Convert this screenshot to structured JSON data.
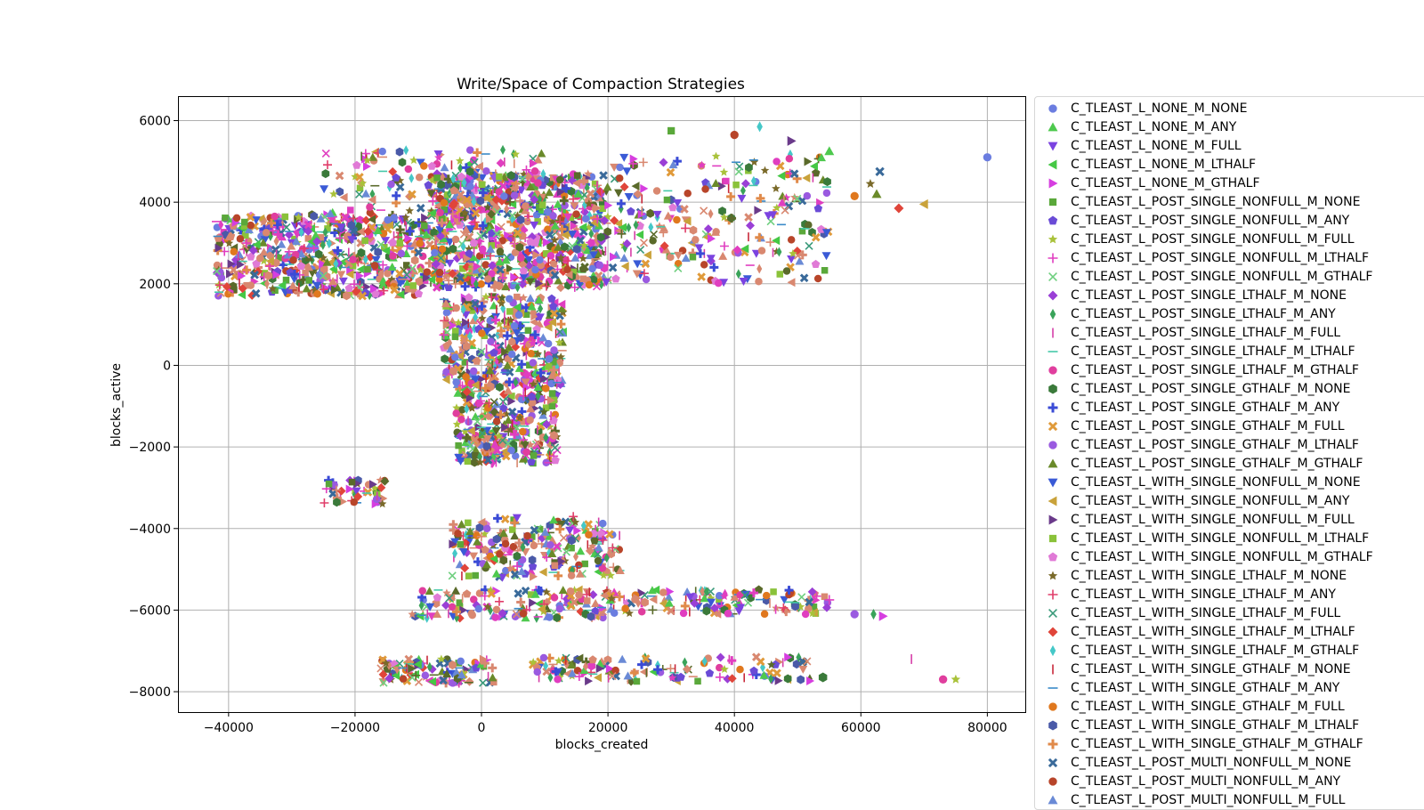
{
  "chart_data": {
    "type": "scatter",
    "title": "Write/Space of Compaction Strategies",
    "xlabel": "blocks_created",
    "ylabel": "blocks_active",
    "xlim": [
      -48000,
      86000
    ],
    "ylim": [
      -8500,
      6600
    ],
    "xticks": [
      -40000,
      -20000,
      0,
      20000,
      40000,
      60000,
      80000
    ],
    "yticks": [
      -8000,
      -6000,
      -4000,
      -2000,
      0,
      2000,
      4000,
      6000
    ],
    "xtick_labels": [
      "−40000",
      "−20000",
      "0",
      "20000",
      "40000",
      "60000",
      "80000"
    ],
    "ytick_labels": [
      "−8000",
      "−6000",
      "−4000",
      "−2000",
      "0",
      "2000",
      "4000",
      "6000"
    ],
    "grid": true,
    "legend_position": "outside-right",
    "series": [
      {
        "name": "C_TLEAST_L_NONE_M_NONE",
        "marker": "circle",
        "color": "#6b7de0"
      },
      {
        "name": "C_TLEAST_L_NONE_M_ANY",
        "marker": "triangle-up",
        "color": "#4ec94e"
      },
      {
        "name": "C_TLEAST_L_NONE_M_FULL",
        "marker": "triangle-down",
        "color": "#7b43e0"
      },
      {
        "name": "C_TLEAST_L_NONE_M_LTHALF",
        "marker": "triangle-left",
        "color": "#45c845"
      },
      {
        "name": "C_TLEAST_L_NONE_M_GTHALF",
        "marker": "triangle-right",
        "color": "#d63ee0"
      },
      {
        "name": "C_TLEAST_L_POST_SINGLE_NONFULL_M_NONE",
        "marker": "square",
        "color": "#5aa83a"
      },
      {
        "name": "C_TLEAST_L_POST_SINGLE_NONFULL_M_ANY",
        "marker": "pentagon",
        "color": "#6a4bd6"
      },
      {
        "name": "C_TLEAST_L_POST_SINGLE_NONFULL_M_FULL",
        "marker": "star",
        "color": "#a9c23a"
      },
      {
        "name": "C_TLEAST_L_POST_SINGLE_NONFULL_M_LTHALF",
        "marker": "plus",
        "color": "#e03ec0"
      },
      {
        "name": "C_TLEAST_L_POST_SINGLE_NONFULL_M_GTHALF",
        "marker": "x",
        "color": "#6fcf7f"
      },
      {
        "name": "C_TLEAST_L_POST_SINGLE_LTHALF_M_NONE",
        "marker": "diamond",
        "color": "#9a3fd6"
      },
      {
        "name": "C_TLEAST_L_POST_SINGLE_LTHALF_M_ANY",
        "marker": "thin-diamond",
        "color": "#3aa35a"
      },
      {
        "name": "C_TLEAST_L_POST_SINGLE_LTHALF_M_FULL",
        "marker": "vline",
        "color": "#d63ea8"
      },
      {
        "name": "C_TLEAST_L_POST_SINGLE_LTHALF_M_LTHALF",
        "marker": "hline",
        "color": "#45c8a8"
      },
      {
        "name": "C_TLEAST_L_POST_SINGLE_LTHALF_M_GTHALF",
        "marker": "circle",
        "color": "#e03e9e"
      },
      {
        "name": "C_TLEAST_L_POST_SINGLE_GTHALF_M_NONE",
        "marker": "hexagon",
        "color": "#3a7a3a"
      },
      {
        "name": "C_TLEAST_L_POST_SINGLE_GTHALF_M_ANY",
        "marker": "plus-filled",
        "color": "#3a4bd6"
      },
      {
        "name": "C_TLEAST_L_POST_SINGLE_GTHALF_M_FULL",
        "marker": "x-filled",
        "color": "#e09a3a"
      },
      {
        "name": "C_TLEAST_L_POST_SINGLE_GTHALF_M_LTHALF",
        "marker": "circle",
        "color": "#9a5ae0"
      },
      {
        "name": "C_TLEAST_L_POST_SINGLE_GTHALF_M_GTHALF",
        "marker": "triangle-up",
        "color": "#6a8a2a"
      },
      {
        "name": "C_TLEAST_L_WITH_SINGLE_NONFULL_M_NONE",
        "marker": "triangle-down",
        "color": "#3a5ad6"
      },
      {
        "name": "C_TLEAST_L_WITH_SINGLE_NONFULL_M_ANY",
        "marker": "triangle-left",
        "color": "#c9a23a"
      },
      {
        "name": "C_TLEAST_L_WITH_SINGLE_NONFULL_M_FULL",
        "marker": "triangle-right",
        "color": "#6a3a8a"
      },
      {
        "name": "C_TLEAST_L_WITH_SINGLE_NONFULL_M_LTHALF",
        "marker": "square",
        "color": "#8ac23a"
      },
      {
        "name": "C_TLEAST_L_WITH_SINGLE_NONFULL_M_GTHALF",
        "marker": "pentagon",
        "color": "#e07ad6"
      },
      {
        "name": "C_TLEAST_L_WITH_SINGLE_LTHALF_M_NONE",
        "marker": "star",
        "color": "#7a6a2a"
      },
      {
        "name": "C_TLEAST_L_WITH_SINGLE_LTHALF_M_ANY",
        "marker": "plus",
        "color": "#e03e6a"
      },
      {
        "name": "C_TLEAST_L_WITH_SINGLE_LTHALF_M_FULL",
        "marker": "x",
        "color": "#3a9a7a"
      },
      {
        "name": "C_TLEAST_L_WITH_SINGLE_LTHALF_M_LTHALF",
        "marker": "diamond",
        "color": "#e0453a"
      },
      {
        "name": "C_TLEAST_L_WITH_SINGLE_LTHALF_M_GTHALF",
        "marker": "thin-diamond",
        "color": "#45c8c8"
      },
      {
        "name": "C_TLEAST_L_WITH_SINGLE_GTHALF_M_NONE",
        "marker": "vline",
        "color": "#c8283a"
      },
      {
        "name": "C_TLEAST_L_WITH_SINGLE_GTHALF_M_ANY",
        "marker": "hline",
        "color": "#3a8ac8"
      },
      {
        "name": "C_TLEAST_L_WITH_SINGLE_GTHALF_M_FULL",
        "marker": "circle",
        "color": "#e0781e"
      },
      {
        "name": "C_TLEAST_L_WITH_SINGLE_GTHALF_M_LTHALF",
        "marker": "hexagon",
        "color": "#4a5aa8"
      },
      {
        "name": "C_TLEAST_L_WITH_SINGLE_GTHALF_M_GTHALF",
        "marker": "plus-filled",
        "color": "#e08a4a"
      },
      {
        "name": "C_TLEAST_L_POST_MULTI_NONFULL_M_NONE",
        "marker": "x-filled",
        "color": "#3a6a9a"
      },
      {
        "name": "C_TLEAST_L_POST_MULTI_NONFULL_M_ANY",
        "marker": "circle",
        "color": "#b8452a"
      },
      {
        "name": "C_TLEAST_L_POST_MULTI_NONFULL_M_FULL",
        "marker": "triangle-up",
        "color": "#6a8ad6"
      }
    ],
    "clusters": [
      {
        "x": [
          -42000,
          -8000
        ],
        "y": [
          1700,
          3700
        ],
        "n": 620
      },
      {
        "x": [
          -8000,
          20000
        ],
        "y": [
          1900,
          4700
        ],
        "n": 820
      },
      {
        "x": [
          20000,
          55000
        ],
        "y": [
          2000,
          5200
        ],
        "n": 260
      },
      {
        "x": [
          -25000,
          10000
        ],
        "y": [
          3700,
          5300
        ],
        "n": 150
      },
      {
        "x": [
          -6000,
          13000
        ],
        "y": [
          -500,
          1700
        ],
        "n": 380
      },
      {
        "x": [
          -4000,
          12000
        ],
        "y": [
          -2400,
          -400
        ],
        "n": 320
      },
      {
        "x": [
          -25000,
          -15000
        ],
        "y": [
          -3400,
          -2800
        ],
        "n": 50
      },
      {
        "x": [
          -5000,
          22000
        ],
        "y": [
          -5200,
          -3700
        ],
        "n": 240
      },
      {
        "x": [
          -11000,
          20000
        ],
        "y": [
          -6200,
          -5500
        ],
        "n": 140
      },
      {
        "x": [
          20000,
          55000
        ],
        "y": [
          -6100,
          -5500
        ],
        "n": 140
      },
      {
        "x": [
          -16000,
          2000
        ],
        "y": [
          -7800,
          -7200
        ],
        "n": 110
      },
      {
        "x": [
          8000,
          52000
        ],
        "y": [
          -7750,
          -7150
        ],
        "n": 140
      }
    ],
    "outliers": [
      {
        "x": 80000,
        "y": 5100
      },
      {
        "x": 75000,
        "y": -7700
      },
      {
        "x": 73000,
        "y": -7700
      },
      {
        "x": 70000,
        "y": 3950
      },
      {
        "x": 66000,
        "y": 3850
      },
      {
        "x": 63000,
        "y": 4750
      },
      {
        "x": 63500,
        "y": -6150
      },
      {
        "x": 62000,
        "y": -6100
      },
      {
        "x": 59000,
        "y": -6100
      },
      {
        "x": 61500,
        "y": 4450
      },
      {
        "x": 59000,
        "y": 4150
      },
      {
        "x": 55000,
        "y": 5250
      },
      {
        "x": 55000,
        "y": -5750
      },
      {
        "x": 54000,
        "y": -7650
      },
      {
        "x": 49000,
        "y": 5500
      },
      {
        "x": 44000,
        "y": 5850
      },
      {
        "x": 40000,
        "y": 5650
      },
      {
        "x": 30000,
        "y": 5750
      },
      {
        "x": 68000,
        "y": -7200
      },
      {
        "x": 62500,
        "y": 4200
      }
    ]
  }
}
